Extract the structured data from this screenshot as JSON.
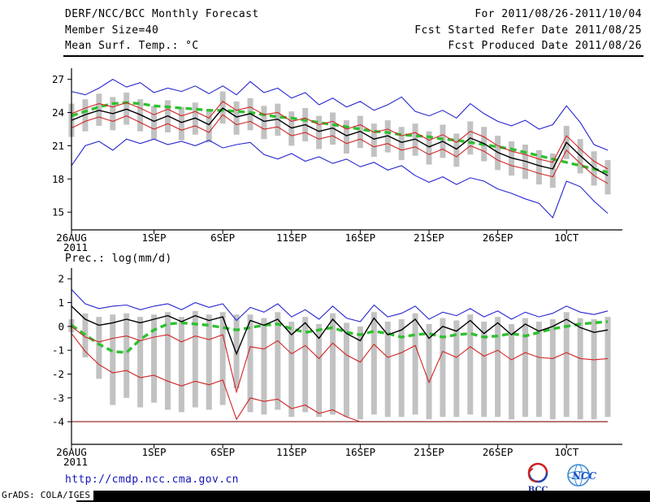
{
  "header": {
    "title": "DERF/NCC/BCC Monthly Forecast",
    "member_size": "Member Size=40",
    "for_range": "For 2011/08/26-2011/10/04",
    "refer_date": "Fcst Started Refer Date 2011/08/25",
    "produced_date": "Fcst Produced Date 2011/08/26"
  },
  "footer": {
    "url": "http://cmdp.ncc.cma.gov.cn",
    "credit": "GrADS: COLA/IGES",
    "bcc_label": "BCC",
    "ncc_label": "NCC"
  },
  "colors": {
    "blue": "#2525cf",
    "red": "#d02525",
    "dark_red": "#8b1a1a",
    "green": "#2fc02f",
    "black": "#000000",
    "gray_bar": "#c2c2c2",
    "axis": "#000000"
  },
  "chart_data": [
    {
      "id": "temp",
      "type": "line",
      "title": "Mean Surf. Temp.: °C",
      "n_days": 40,
      "ylim": [
        13.4,
        28.0
      ],
      "yticks": [
        15,
        18,
        21,
        24,
        27
      ],
      "xticks": [
        {
          "day": 0,
          "label": "26AUG"
        },
        {
          "day": 6,
          "label": "1SEP"
        },
        {
          "day": 11,
          "label": "6SEP"
        },
        {
          "day": 16,
          "label": "11SEP"
        },
        {
          "day": 21,
          "label": "16SEP"
        },
        {
          "day": 26,
          "label": "21SEP"
        },
        {
          "day": 31,
          "label": "26SEP"
        },
        {
          "day": 36,
          "label": "1OCT"
        }
      ],
      "xtick_sub": {
        "day": 0,
        "label": "2011"
      },
      "series": [
        {
          "name": "climatology",
          "color_key": "green",
          "width": 3.4,
          "dashed": true,
          "values": [
            23.7,
            24.1,
            24.5,
            24.8,
            24.9,
            24.8,
            24.6,
            24.5,
            24.4,
            24.3,
            24.2,
            24.2,
            24.1,
            24.0,
            23.8,
            23.6,
            23.5,
            23.3,
            23.1,
            22.9,
            22.7,
            22.5,
            22.3,
            22.2,
            22.0,
            21.9,
            21.8,
            21.6,
            21.5,
            21.3,
            21.1,
            20.9,
            20.7,
            20.4,
            20.1,
            19.8,
            19.5,
            19.2,
            18.9,
            18.6
          ]
        },
        {
          "name": "ensemble-max",
          "color_key": "blue",
          "width": 1.1,
          "values": [
            25.9,
            25.6,
            26.2,
            27.0,
            26.3,
            26.7,
            25.8,
            26.2,
            25.9,
            26.4,
            25.7,
            26.4,
            25.6,
            26.8,
            25.8,
            26.2,
            25.3,
            25.8,
            24.7,
            25.3,
            24.5,
            25.0,
            24.2,
            24.7,
            25.4,
            24.1,
            23.7,
            24.2,
            23.5,
            24.8,
            23.9,
            23.2,
            22.8,
            23.3,
            22.5,
            22.9,
            24.6,
            23.1,
            21.1,
            20.6
          ]
        },
        {
          "name": "ensemble-min",
          "color_key": "blue",
          "width": 1.1,
          "values": [
            19.2,
            21.0,
            21.4,
            20.6,
            21.6,
            21.2,
            21.6,
            21.1,
            21.4,
            21.0,
            21.5,
            20.8,
            21.1,
            21.3,
            20.2,
            19.8,
            20.3,
            19.6,
            20.0,
            19.4,
            19.8,
            19.1,
            19.5,
            18.8,
            19.2,
            18.3,
            17.7,
            18.2,
            17.5,
            18.1,
            17.8,
            17.1,
            16.7,
            16.2,
            15.8,
            14.5,
            17.8,
            17.3,
            16.0,
            14.9
          ]
        },
        {
          "name": "upper-quartile",
          "color_key": "red",
          "width": 1.1,
          "values": [
            23.9,
            24.4,
            24.8,
            24.5,
            24.9,
            24.4,
            23.8,
            24.3,
            23.7,
            24.1,
            23.5,
            25.0,
            24.2,
            24.5,
            23.8,
            24.0,
            23.2,
            23.5,
            22.9,
            23.2,
            22.5,
            22.9,
            22.2,
            22.5,
            21.9,
            22.2,
            21.5,
            22.0,
            21.3,
            22.3,
            21.8,
            21.0,
            20.5,
            20.2,
            19.8,
            19.5,
            21.9,
            20.7,
            19.6,
            18.9
          ]
        },
        {
          "name": "lower-quartile",
          "color_key": "red",
          "width": 1.1,
          "values": [
            22.6,
            23.2,
            23.6,
            23.2,
            23.7,
            23.1,
            22.5,
            23.0,
            22.4,
            22.8,
            22.2,
            23.8,
            22.9,
            23.2,
            22.5,
            22.7,
            21.9,
            22.2,
            21.6,
            21.9,
            21.2,
            21.6,
            20.9,
            21.2,
            20.6,
            20.9,
            20.2,
            20.7,
            20.0,
            21.0,
            20.5,
            19.7,
            19.2,
            18.9,
            18.5,
            18.2,
            20.6,
            19.4,
            18.3,
            17.6
          ]
        },
        {
          "name": "ensemble-mean",
          "color_key": "black",
          "width": 1.4,
          "values": [
            23.3,
            23.8,
            24.2,
            23.9,
            24.3,
            23.8,
            23.2,
            23.7,
            23.1,
            23.5,
            22.9,
            24.4,
            23.6,
            23.9,
            23.2,
            23.4,
            22.6,
            22.9,
            22.3,
            22.6,
            21.9,
            22.3,
            21.6,
            21.9,
            21.3,
            21.6,
            20.9,
            21.4,
            20.7,
            21.7,
            21.2,
            20.4,
            19.9,
            19.6,
            19.2,
            18.9,
            21.3,
            20.1,
            19.0,
            18.3
          ]
        }
      ],
      "bars": {
        "low": [
          21.8,
          22.3,
          22.8,
          22.4,
          22.9,
          22.3,
          21.6,
          22.2,
          21.5,
          22.0,
          21.3,
          23.0,
          22.0,
          22.4,
          21.6,
          21.9,
          21.0,
          21.4,
          20.7,
          21.1,
          20.3,
          20.8,
          20.0,
          20.4,
          19.7,
          20.1,
          19.3,
          19.9,
          19.1,
          20.2,
          19.6,
          18.8,
          18.3,
          18.0,
          17.5,
          17.2,
          19.8,
          18.5,
          17.4,
          16.6
        ],
        "high": [
          24.8,
          25.2,
          25.7,
          25.4,
          25.8,
          25.2,
          24.6,
          25.1,
          24.5,
          24.9,
          24.3,
          25.9,
          25.0,
          25.3,
          24.6,
          24.8,
          24.1,
          24.4,
          23.7,
          24.0,
          23.3,
          23.7,
          23.0,
          23.3,
          22.7,
          23.0,
          22.3,
          22.9,
          22.1,
          23.2,
          22.7,
          21.9,
          21.4,
          21.1,
          20.6,
          20.3,
          22.8,
          21.6,
          20.5,
          19.7
        ]
      }
    },
    {
      "id": "prec",
      "type": "line",
      "title": "Prec.: log(mm/d)",
      "n_days": 40,
      "ylim": [
        -4.95,
        2.45
      ],
      "yticks": [
        -4,
        -3,
        -2,
        -1,
        0,
        1,
        2
      ],
      "xticks": [
        {
          "day": 0,
          "label": "26AUG"
        },
        {
          "day": 6,
          "label": "1SEP"
        },
        {
          "day": 11,
          "label": "6SEP"
        },
        {
          "day": 16,
          "label": "11SEP"
        },
        {
          "day": 21,
          "label": "16SEP"
        },
        {
          "day": 26,
          "label": "21SEP"
        },
        {
          "day": 31,
          "label": "26SEP"
        },
        {
          "day": 36,
          "label": "1OCT"
        }
      ],
      "xtick_sub": {
        "day": 0,
        "label": "2011"
      },
      "series": [
        {
          "name": "climatology",
          "color_key": "green",
          "width": 3.4,
          "dashed": true,
          "values": [
            0.05,
            -0.35,
            -0.75,
            -1.05,
            -1.1,
            -0.55,
            -0.15,
            0.1,
            0.15,
            0.1,
            0.05,
            -0.05,
            -0.15,
            -0.05,
            0.05,
            0.1,
            -0.1,
            -0.25,
            -0.15,
            -0.05,
            -0.25,
            -0.35,
            -0.2,
            -0.3,
            -0.45,
            -0.35,
            -0.3,
            -0.45,
            -0.35,
            -0.3,
            -0.45,
            -0.4,
            -0.3,
            -0.4,
            -0.25,
            -0.1,
            0.0,
            0.1,
            0.15,
            0.2
          ]
        },
        {
          "name": "ensemble-max",
          "color_key": "blue",
          "width": 1.1,
          "values": [
            1.55,
            0.95,
            0.75,
            0.85,
            0.9,
            0.7,
            0.85,
            0.95,
            0.7,
            1.0,
            0.8,
            0.95,
            0.25,
            0.8,
            0.6,
            0.95,
            0.4,
            0.7,
            0.3,
            0.85,
            0.35,
            0.2,
            0.9,
            0.4,
            0.55,
            0.85,
            0.3,
            0.6,
            0.45,
            0.75,
            0.4,
            0.65,
            0.3,
            0.6,
            0.4,
            0.55,
            0.85,
            0.6,
            0.5,
            0.65
          ]
        },
        {
          "name": "lower-quartile",
          "color_key": "red",
          "width": 1.1,
          "values": [
            0.0,
            -0.45,
            -0.65,
            -0.5,
            -0.4,
            -0.6,
            -0.45,
            -0.35,
            -0.65,
            -0.4,
            -0.55,
            -0.35,
            -2.75,
            -0.85,
            -0.95,
            -0.6,
            -1.15,
            -0.8,
            -1.35,
            -0.7,
            -1.2,
            -1.5,
            -0.75,
            -1.3,
            -1.1,
            -0.8,
            -2.35,
            -1.05,
            -1.3,
            -0.85,
            -1.25,
            -1.0,
            -1.4,
            -1.1,
            -1.3,
            -1.35,
            -1.1,
            -1.35,
            -1.4,
            -1.35
          ]
        },
        {
          "name": "ensemble-min",
          "color_key": "red",
          "width": 1.1,
          "values": [
            -0.3,
            -1.05,
            -1.6,
            -1.95,
            -1.85,
            -2.15,
            -2.05,
            -2.3,
            -2.5,
            -2.3,
            -2.45,
            -2.25,
            -3.9,
            -3.0,
            -3.15,
            -3.05,
            -3.45,
            -3.3,
            -3.65,
            -3.5,
            -3.8,
            -4.0,
            -4.0,
            -4.0,
            -4.0,
            -4.0,
            -4.0,
            -4.0,
            -4.0,
            -4.0,
            -4.0,
            -4.0,
            -4.0,
            -4.0,
            -4.0,
            -4.0,
            -4.0,
            -4.0,
            -4.0,
            -4.0
          ]
        },
        {
          "name": "zero-precip-floor",
          "color_key": "dark_red",
          "width": 1.1,
          "flat": -4
        },
        {
          "name": "ensemble-mean",
          "color_key": "black",
          "width": 1.4,
          "values": [
            0.85,
            0.3,
            0.05,
            0.15,
            0.3,
            0.15,
            0.3,
            0.45,
            0.2,
            0.45,
            0.25,
            0.4,
            -1.15,
            0.25,
            0.05,
            0.3,
            -0.35,
            0.15,
            -0.5,
            0.3,
            -0.3,
            -0.6,
            0.35,
            -0.35,
            -0.15,
            0.3,
            -0.5,
            0.0,
            -0.2,
            0.25,
            -0.3,
            0.15,
            -0.35,
            0.1,
            -0.2,
            0.0,
            0.3,
            -0.05,
            -0.25,
            -0.15
          ]
        }
      ],
      "bars": {
        "low": [
          -0.25,
          -1.3,
          -2.2,
          -3.3,
          -3.0,
          -3.4,
          -3.2,
          -3.5,
          -3.6,
          -3.4,
          -3.5,
          -3.3,
          -2.6,
          -3.6,
          -3.7,
          -3.5,
          -3.8,
          -3.6,
          -3.8,
          -3.7,
          -3.8,
          -3.9,
          -3.7,
          -3.8,
          -3.8,
          -3.7,
          -3.9,
          -3.8,
          -3.8,
          -3.7,
          -3.8,
          -3.8,
          -3.9,
          -3.8,
          -3.8,
          -3.9,
          -3.8,
          -3.9,
          -3.9,
          -3.8
        ],
        "high": [
          0.3,
          0.55,
          0.4,
          0.5,
          0.55,
          0.4,
          0.5,
          0.6,
          0.4,
          0.65,
          0.5,
          0.6,
          0.5,
          0.5,
          0.35,
          0.6,
          0.2,
          0.4,
          0.1,
          0.55,
          0.15,
          0.0,
          0.6,
          0.2,
          0.3,
          0.55,
          0.1,
          0.35,
          0.25,
          0.5,
          0.2,
          0.4,
          0.1,
          0.35,
          0.2,
          0.3,
          0.6,
          0.35,
          0.3,
          0.4
        ]
      }
    }
  ]
}
